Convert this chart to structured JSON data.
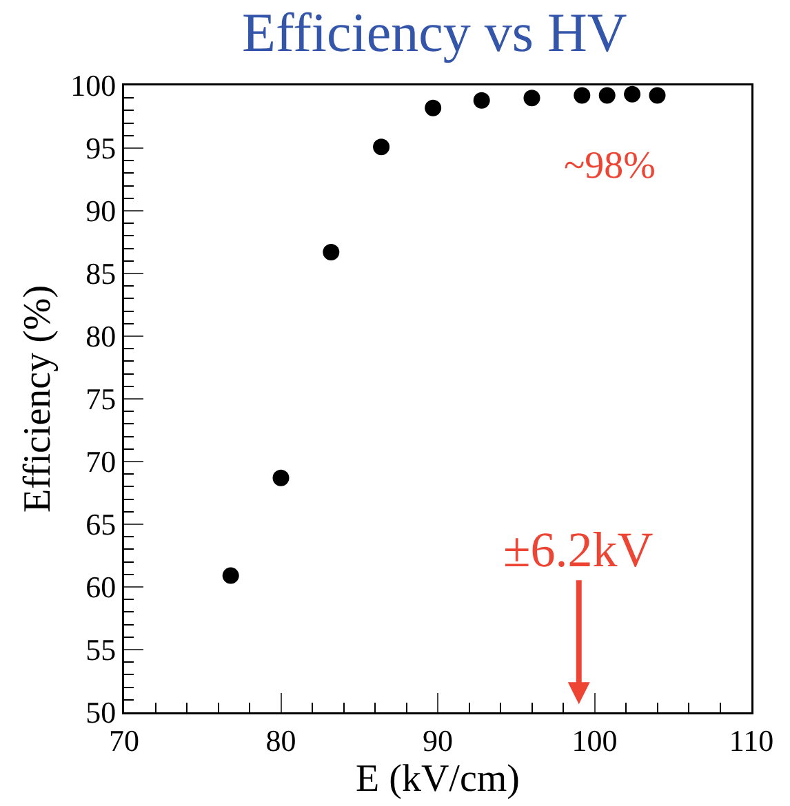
{
  "chart_data": {
    "type": "scatter",
    "title": "Efficiency vs HV",
    "xlabel": "E (kV/cm)",
    "ylabel": "Efficiency (%)",
    "x": [
      76.8,
      80.0,
      83.2,
      86.4,
      89.7,
      92.8,
      96.0,
      99.2,
      100.8,
      102.4,
      104.0
    ],
    "series": [
      {
        "color": "#000000",
        "values": [
          60.9,
          68.7,
          86.7,
          95.1,
          98.2,
          98.8,
          99.0,
          99.2,
          99.2,
          99.3,
          99.2
        ],
        "xerrors": [
          0.5,
          0.5,
          0.5,
          0.5,
          0.5,
          0.5,
          0.5,
          0.5,
          0.5,
          0.5,
          0.5
        ]
      }
    ],
    "xlim": [
      70,
      110
    ],
    "xticks": [
      70,
      80,
      90,
      100,
      110
    ],
    "ylim": [
      50,
      100
    ],
    "yticks": [
      50,
      55,
      60,
      65,
      70,
      75,
      80,
      85,
      90,
      95,
      100
    ],
    "marker": "circle",
    "grid": false,
    "annotations": [
      "~98%",
      "±6.2kV"
    ]
  }
}
